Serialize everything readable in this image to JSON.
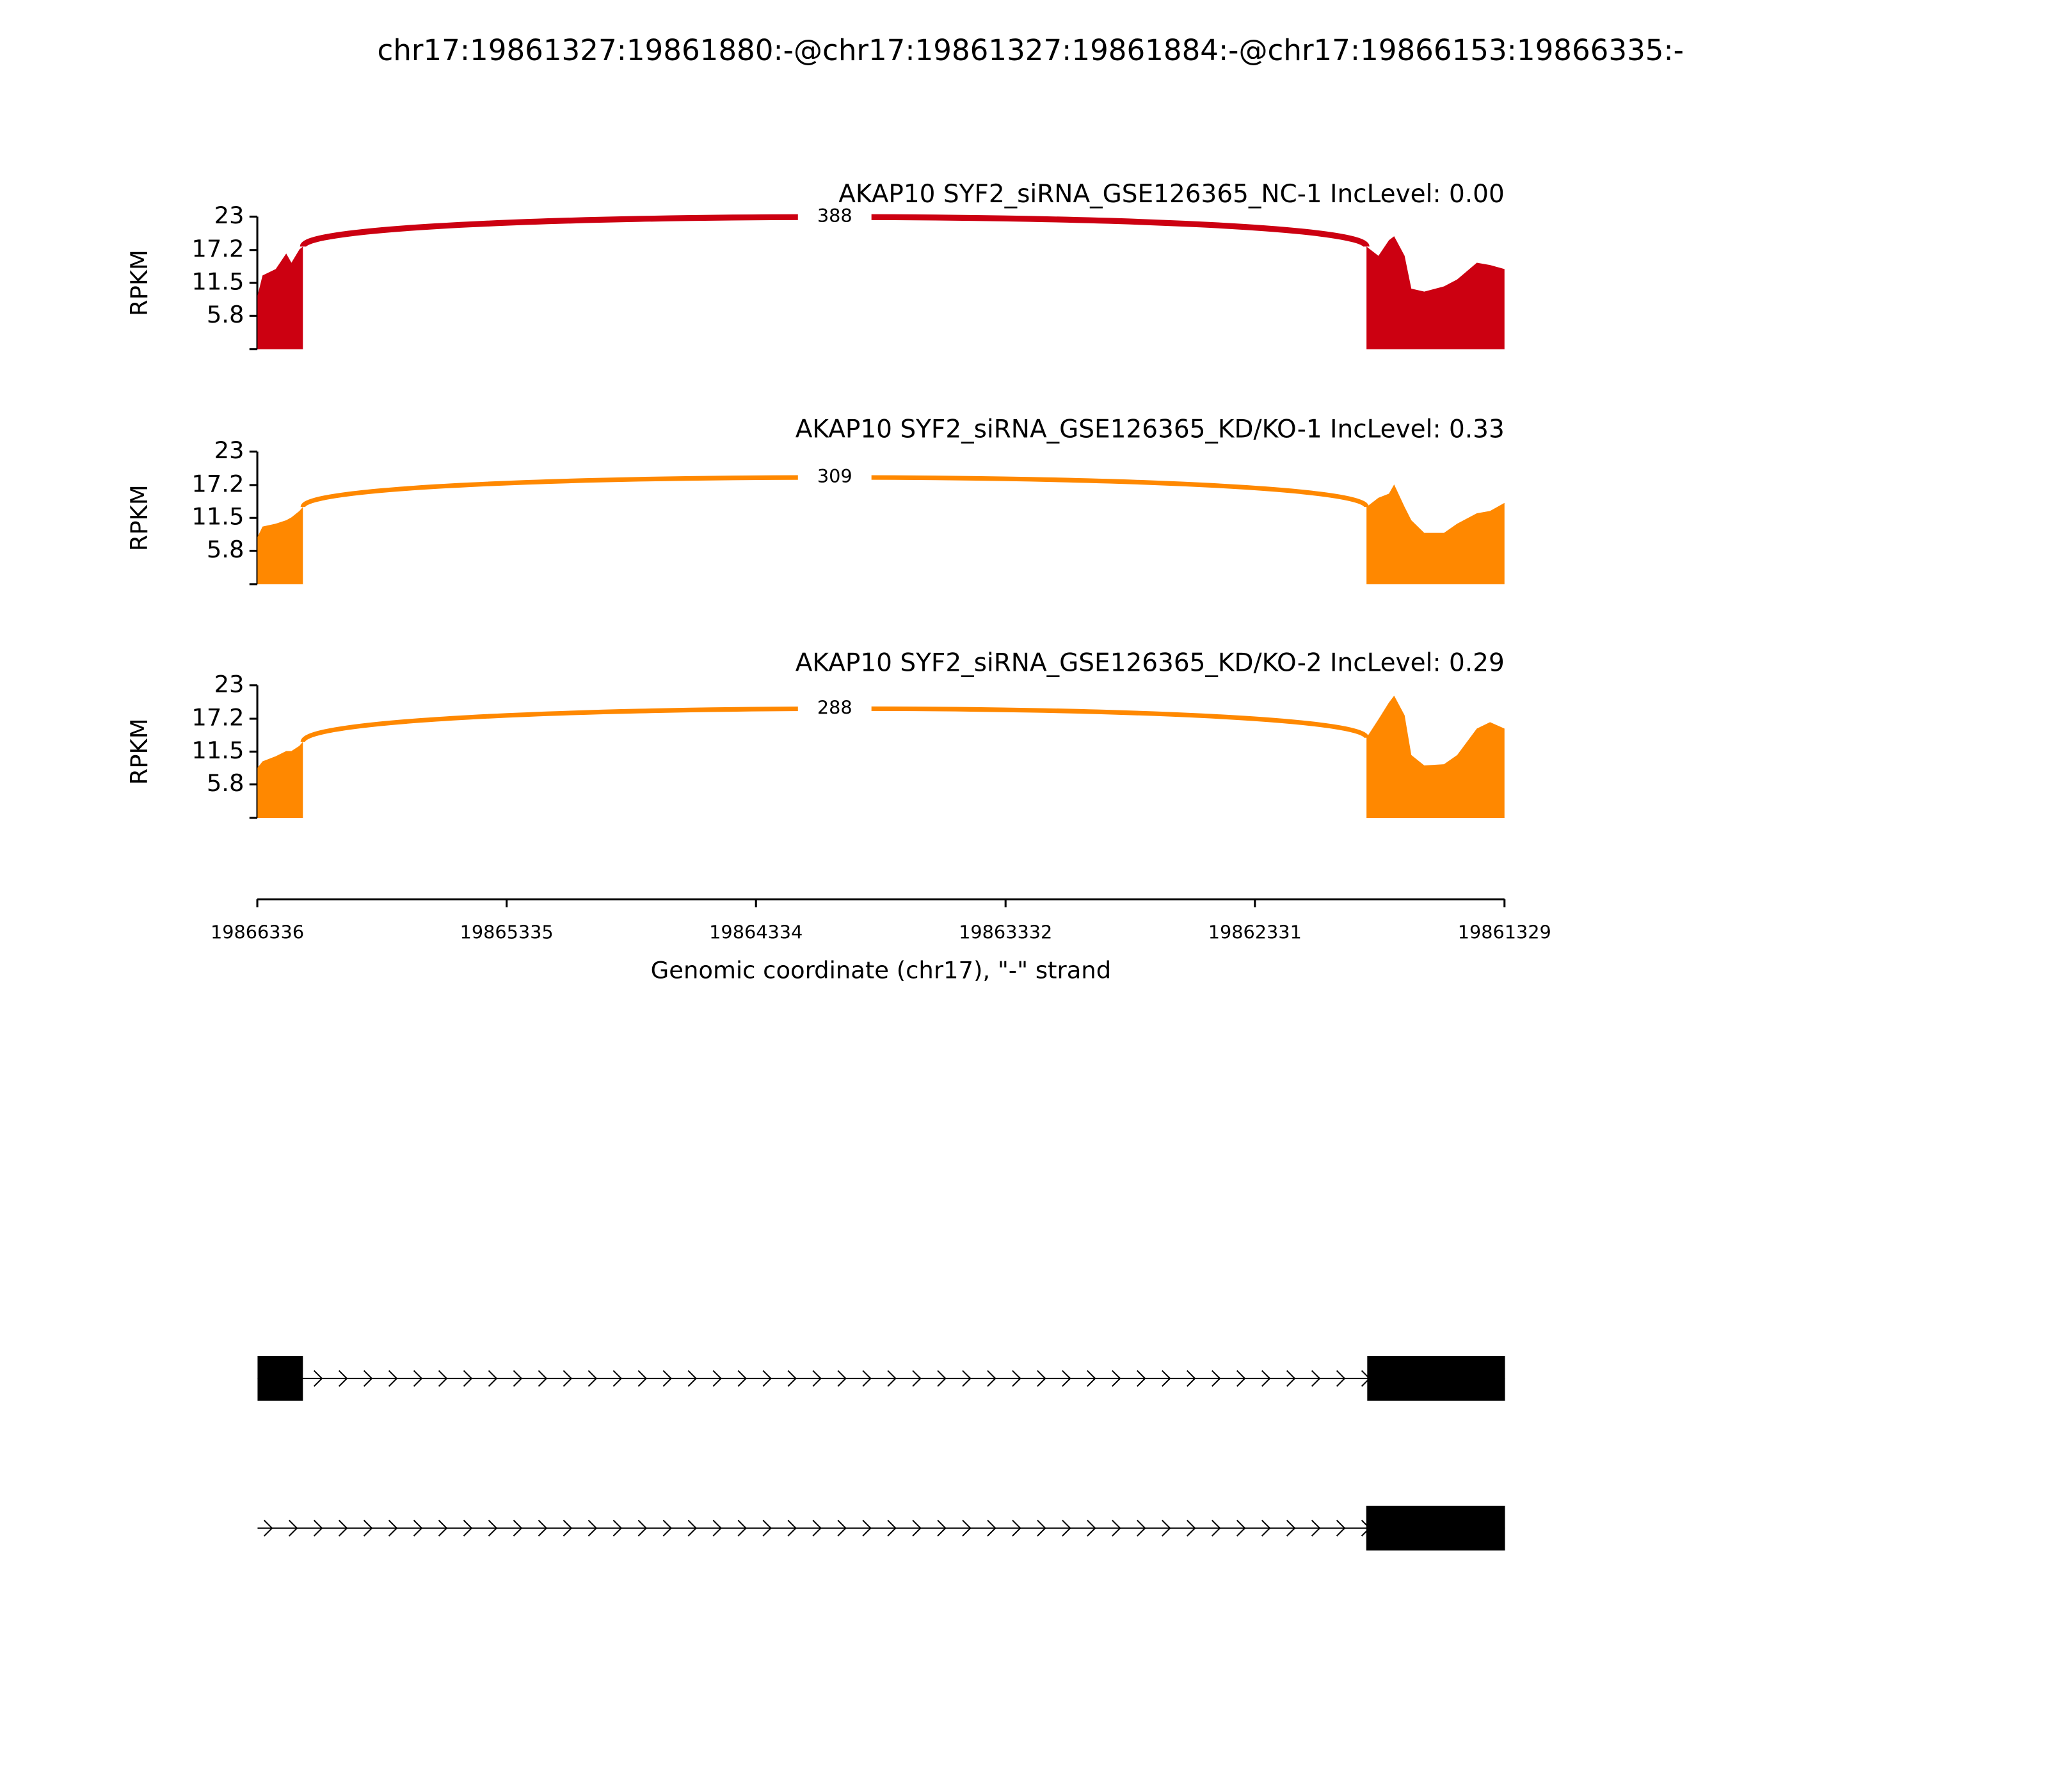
{
  "title": "chr17:19861327:19861880:-@chr17:19861327:19861884:-@chr17:19866153:19866335:-",
  "chart_data": [
    {
      "type": "area",
      "label": "AKAP10 SYF2_siRNA_GSE126365_NC-1 IncLevel: 0.00",
      "color": "#cc0011",
      "ylabel": "RPKM",
      "xlim": [
        19866336,
        19861329
      ],
      "ylim": [
        0,
        23
      ],
      "yticks": [
        5.8,
        11.5,
        17.2,
        23
      ],
      "coverage": [
        {
          "x": [
            19866335,
            19866315,
            19866262,
            19866220,
            19866199,
            19866167,
            19866153
          ],
          "values": [
            9.3,
            12.8,
            13.9,
            16.6,
            15,
            17.3,
            17.8
          ]
        },
        {
          "x": [
            19861883,
            19861835,
            19861793,
            19861772,
            19861730,
            19861703,
            19861651,
            19861572,
            19861519,
            19861440,
            19861387,
            19861329
          ],
          "values": [
            17.8,
            16.2,
            18.9,
            19.6,
            16.2,
            10.5,
            10,
            10.9,
            12.1,
            15,
            14.6,
            13.9
          ]
        }
      ],
      "junction": {
        "count": 388
      }
    },
    {
      "type": "area",
      "label": "AKAP10 SYF2_siRNA_GSE126365_KD/KO-1 IncLevel: 0.33",
      "color": "#ff8800",
      "ylabel": "RPKM",
      "xlim": [
        19866336,
        19861329
      ],
      "ylim": [
        0,
        23
      ],
      "yticks": [
        5.8,
        11.5,
        17.2,
        23
      ],
      "coverage": [
        {
          "x": [
            19866335,
            19866315,
            19866262,
            19866220,
            19866199,
            19866167,
            19866153
          ],
          "values": [
            8.2,
            10,
            10.5,
            11.1,
            11.6,
            12.7,
            13.4
          ]
        },
        {
          "x": [
            19861883,
            19861835,
            19861793,
            19861772,
            19861730,
            19861703,
            19861651,
            19861572,
            19861519,
            19861440,
            19861387,
            19861329
          ],
          "values": [
            13.4,
            15,
            15.7,
            17.3,
            13.4,
            11.1,
            8.9,
            8.9,
            10.5,
            12.3,
            12.7,
            14.1
          ]
        }
      ],
      "junction": {
        "count": 309
      }
    },
    {
      "type": "area",
      "label": "AKAP10 SYF2_siRNA_GSE126365_KD/KO-2 IncLevel: 0.29",
      "color": "#ff8800",
      "ylabel": "RPKM",
      "xlim": [
        19866336,
        19861329
      ],
      "ylim": [
        0,
        23
      ],
      "yticks": [
        5.8,
        11.5,
        17.2,
        23
      ],
      "coverage": [
        {
          "x": [
            19866335,
            19866315,
            19866262,
            19866220,
            19866199,
            19866167,
            19866153
          ],
          "values": [
            8.7,
            9.8,
            10.7,
            11.6,
            11.6,
            12.5,
            13.2
          ]
        },
        {
          "x": [
            19861883,
            19861835,
            19861793,
            19861772,
            19861730,
            19861703,
            19861651,
            19861572,
            19861519,
            19861440,
            19861387,
            19861329
          ],
          "values": [
            13.9,
            17.1,
            20,
            21.2,
            17.8,
            10.9,
            9.1,
            9.3,
            10.9,
            15.5,
            16.6,
            15.5
          ]
        }
      ],
      "junction": {
        "count": 288
      }
    },
    {
      "type": "genomic-axis",
      "xlim": [
        19866336,
        19861329
      ],
      "xticks": [
        19866336,
        19865335,
        19864334,
        19863332,
        19862331,
        19861329
      ],
      "xlabel": "Genomic coordinate (chr17), \"-\" strand"
    },
    {
      "type": "gene-model",
      "xlim": [
        19866336,
        19861329
      ],
      "transcripts": [
        {
          "span": [
            19866335,
            19861327
          ],
          "exons": [
            [
              19866335,
              19866153
            ],
            [
              19861880,
              19861327
            ]
          ]
        },
        {
          "span": [
            19866335,
            19861327
          ],
          "exons": [
            [
              19861884,
              19861327
            ]
          ]
        }
      ]
    }
  ]
}
